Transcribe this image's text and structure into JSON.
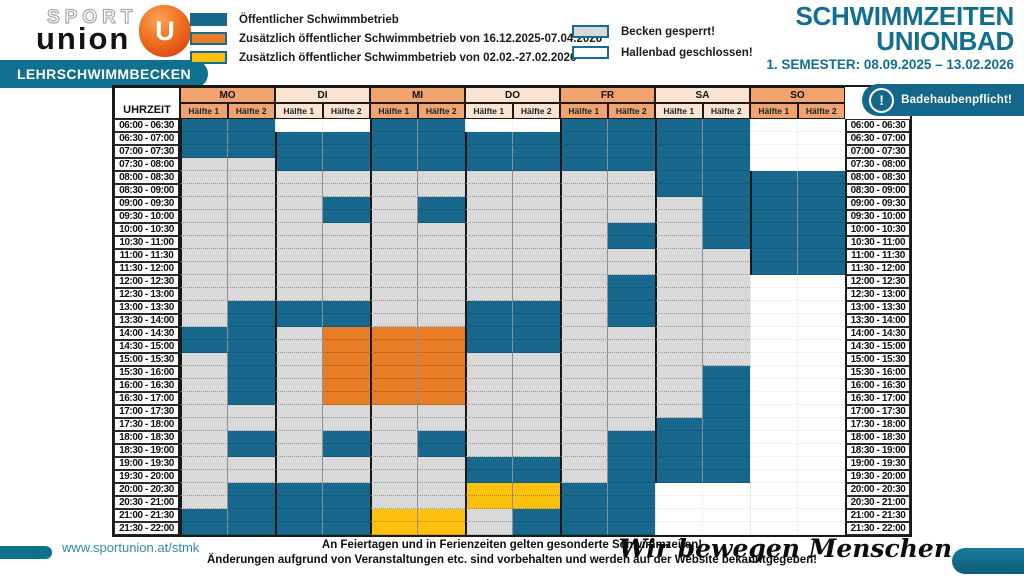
{
  "logo": {
    "sport": "SPORT",
    "union": "union",
    "u": "U"
  },
  "pool_label": "LEHRSCHWIMMBECKEN",
  "legend": {
    "open": "Öffentlicher Schwimmbetrieb",
    "extra_orange": "Zusätzlich öffentlicher Schwimmbetrieb von 16.12.2025-07.04.2026",
    "extra_yellow": "Zusätzlich öffentlicher Schwimmbetrieb von 02.02.-27.02.2026",
    "blocked": "Becken gesperrt!",
    "closed": "Hallenbad geschlossen!"
  },
  "title": {
    "line1": "SCHWIMMZEITEN",
    "line2": "UNIONBAD",
    "semester": "1. SEMESTER: 08.09.2025 – 13.02.2026"
  },
  "notice": "Badehaubenpflicht!",
  "colors": {
    "T": "#17688c",
    "O": "#e87d26",
    "Y": "#fdc10d",
    "G": "#d9d9d9",
    "W": "#ffffff",
    "brand": "#136f92",
    "day_dark": "#f1a36f",
    "day_light": "#fbe3d1"
  },
  "grid": {
    "time_header": "UHRZEIT",
    "half_labels": [
      "Hälfte 1",
      "Hälfte 2"
    ],
    "days": [
      {
        "name": "MO",
        "shade": "dark"
      },
      {
        "name": "DI",
        "shade": "light"
      },
      {
        "name": "MI",
        "shade": "dark"
      },
      {
        "name": "DO",
        "shade": "light"
      },
      {
        "name": "FR",
        "shade": "dark"
      },
      {
        "name": "SA",
        "shade": "light"
      },
      {
        "name": "SO",
        "shade": "dark"
      }
    ],
    "times": [
      "06:00 - 06:30",
      "06:30 - 07:00",
      "07:00 - 07:30",
      "07:30 - 08:00",
      "08:00 - 08:30",
      "08:30 - 09:00",
      "09:00 - 09:30",
      "09:30 - 10:00",
      "10:00 - 10:30",
      "10:30 - 11:00",
      "11:00 - 11:30",
      "11:30 - 12:00",
      "12:00 - 12:30",
      "12:30 - 13:00",
      "13:00 - 13:30",
      "13:30 - 14:00",
      "14:00 - 14:30",
      "14:30 - 15:00",
      "15:00 - 15:30",
      "15:30 - 16:00",
      "16:00 - 16:30",
      "16:30 - 17:00",
      "17:00 - 17:30",
      "17:30 - 18:00",
      "18:00 - 18:30",
      "18:30 - 19:00",
      "19:00 - 19:30",
      "19:30 - 20:00",
      "20:00 - 20:30",
      "20:30 - 21:00",
      "21:00 - 21:30",
      "21:30 - 22:00"
    ],
    "cell_legend": {
      "T": "open",
      "O": "extra_orange",
      "Y": "extra_yellow",
      "G": "blocked",
      "W": "closed"
    },
    "cells": [
      "TTWWTTWWTTTTWW",
      "TTTTTTTTTTTTWW",
      "TTTTTTTTTTTTWW",
      "GGTTTTTTTTTTWW",
      "GGGGGGGGGGTTTT",
      "GGGGGGGGGGTTTT",
      "GGGTGTGGGGGTTT",
      "GGGTGTGGGGGTTT",
      "GGGGGGGGGTGTTT",
      "GGGGGGGGGTGTTT",
      "GGGGGGGGGGGGTT",
      "GGGGGGGGGGGGTT",
      "GGGGGGGGGTGGWW",
      "GGGGGGGGGTGGWW",
      "GTTTGGTTGTGGWW",
      "GTTTGGTTGTGGWW",
      "TTGOOOTTGGGGWW",
      "TTGOOOTTGGGGWW",
      "GTGOOOGGGGGGWW",
      "GTGOOOGGGGGTWW",
      "GTGOOOGGGGGTWW",
      "GTGOOOGGGGGTWW",
      "GGGGGGGGGGGTWW",
      "GGGGGGGGGGTTWW",
      "GTGTGTGGGTTTWW",
      "GTGTGTGGGTTTWW",
      "GGGGGGTTGTTTWW",
      "GGGGGGTTGTTTWW",
      "GTTTGGYYTTWWWW",
      "GTTTGGYYTTWWWW",
      "TTTTYYGTTTWWWW",
      "TTTTYYGTTTWWWW"
    ]
  },
  "footer": {
    "url": "www.sportunion.at/stmk",
    "note1": "An Feiertagen und in Ferienzeiten gelten gesonderte Schwimmzeiten!",
    "note2": "Änderungen aufgrund von Veranstaltungen etc. sind vorbehalten und werden auf der Website bekanntgegeben!",
    "slogan": "Wir bewegen Menschen"
  }
}
